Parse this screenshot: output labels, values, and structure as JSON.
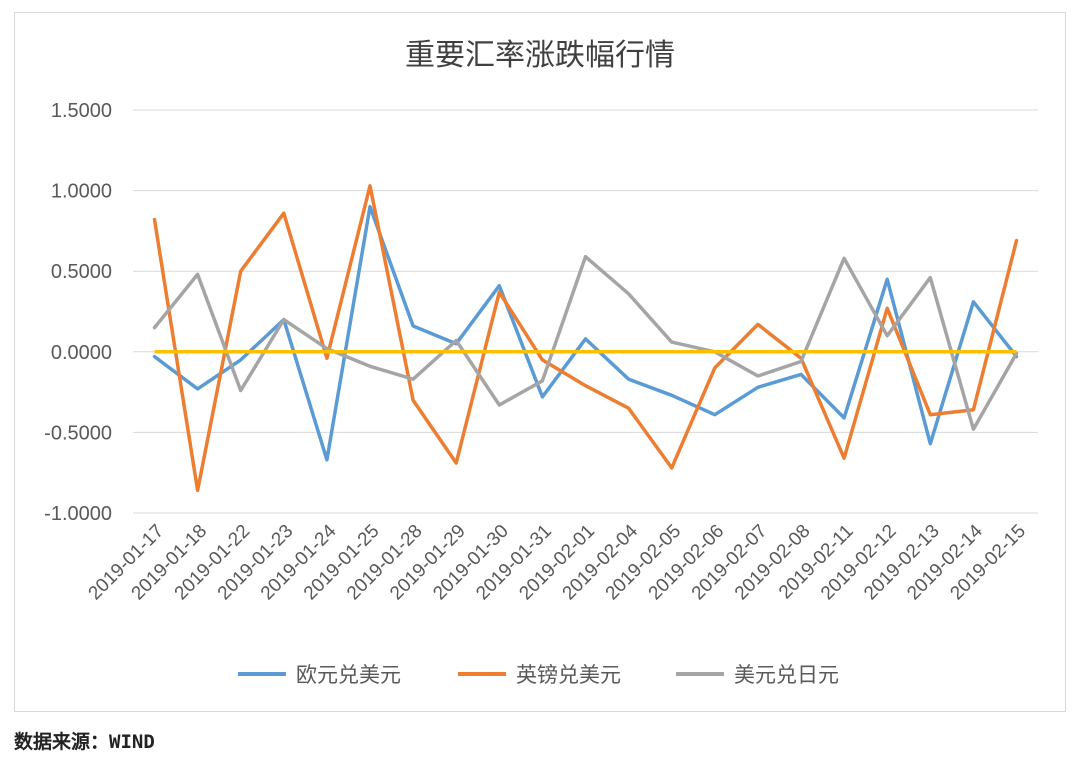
{
  "chart_data": {
    "type": "line",
    "title": "重要汇率涨跌幅行情",
    "xlabel": "",
    "ylabel": "",
    "ylim": [
      -1.0,
      1.5
    ],
    "yticks": [
      "-1.0000",
      "-0.5000",
      "0.0000",
      "0.5000",
      "1.0000",
      "1.5000"
    ],
    "ytick_values": [
      -1.0,
      -0.5,
      0.0,
      0.5,
      1.0,
      1.5
    ],
    "grid": true,
    "legend": "bottom",
    "categories": [
      "2019-01-17",
      "2019-01-18",
      "2019-01-22",
      "2019-01-23",
      "2019-01-24",
      "2019-01-25",
      "2019-01-28",
      "2019-01-29",
      "2019-01-30",
      "2019-01-31",
      "2019-02-01",
      "2019-02-04",
      "2019-02-05",
      "2019-02-06",
      "2019-02-07",
      "2019-02-08",
      "2019-02-11",
      "2019-02-12",
      "2019-02-13",
      "2019-02-14",
      "2019-02-15"
    ],
    "series": [
      {
        "name": "欧元兑美元",
        "color": "#5b9bd5",
        "values": [
          -0.03,
          -0.23,
          -0.05,
          0.2,
          -0.67,
          0.9,
          0.16,
          0.05,
          0.41,
          -0.28,
          0.08,
          -0.17,
          -0.27,
          -0.39,
          -0.22,
          -0.14,
          -0.41,
          0.45,
          -0.57,
          0.31,
          -0.03
        ]
      },
      {
        "name": "英镑兑美元",
        "color": "#ed7d31",
        "values": [
          0.82,
          -0.86,
          0.5,
          0.86,
          -0.04,
          1.03,
          -0.3,
          -0.69,
          0.37,
          -0.05,
          -0.21,
          -0.35,
          -0.72,
          -0.1,
          0.17,
          -0.04,
          -0.66,
          0.27,
          -0.39,
          -0.36,
          0.69
        ]
      },
      {
        "name": "美元兑日元",
        "color": "#a5a5a5",
        "values": [
          0.15,
          0.48,
          -0.24,
          0.2,
          0.02,
          -0.09,
          -0.17,
          0.07,
          -0.33,
          -0.18,
          0.59,
          0.36,
          0.06,
          0.0,
          -0.15,
          -0.06,
          0.58,
          0.1,
          0.46,
          -0.48,
          -0.01
        ]
      }
    ],
    "reference_line": {
      "value": 0.0,
      "color": "#ffc000"
    }
  },
  "footer": {
    "source": "数据来源：WIND"
  }
}
